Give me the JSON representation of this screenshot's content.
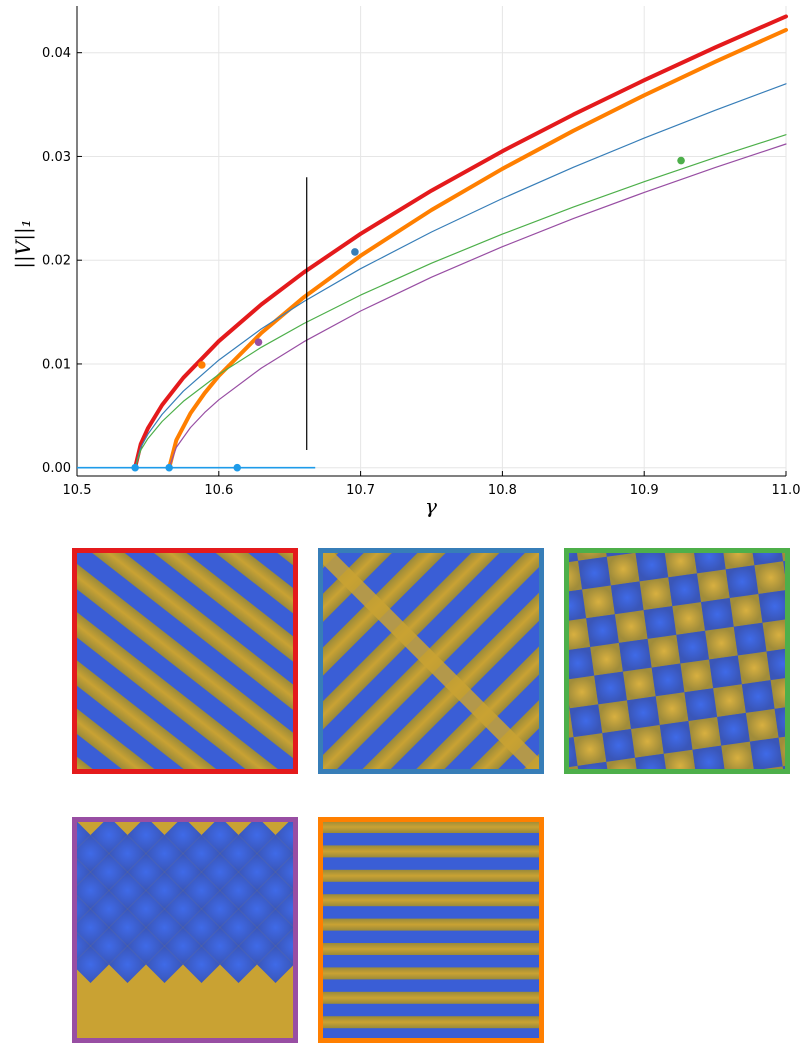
{
  "chart_data": {
    "type": "line",
    "xlabel": "γ",
    "ylabel": "||V||₁",
    "xlim": [
      10.5,
      11.0
    ],
    "ylim": [
      -0.0008,
      0.0445
    ],
    "xticks": [
      "10.5",
      "10.6",
      "10.7",
      "10.8",
      "10.9",
      "11.0"
    ],
    "xtick_values": [
      10.5,
      10.6,
      10.7,
      10.8,
      10.9,
      11.0
    ],
    "yticks": [
      "0.00",
      "0.01",
      "0.02",
      "0.03",
      "0.04"
    ],
    "ytick_values": [
      0.0,
      0.01,
      0.02,
      0.03,
      0.04
    ],
    "grid": true,
    "series": [
      {
        "color": "#e41a1c",
        "width": 4,
        "onset": 10.541,
        "at_end": 0.0435,
        "x": [
          10.541,
          10.545,
          10.55,
          10.56,
          10.575,
          10.6,
          10.63,
          10.66,
          10.7,
          10.75,
          10.8,
          10.85,
          10.9,
          10.95,
          11.0
        ]
      },
      {
        "color": "#ff7f00",
        "width": 4,
        "onset": 10.565,
        "at_end": 0.0422,
        "x": [
          10.565,
          10.57,
          10.58,
          10.59,
          10.6,
          10.63,
          10.66,
          10.7,
          10.75,
          10.8,
          10.85,
          10.9,
          10.95,
          11.0
        ]
      },
      {
        "color": "#377eb8",
        "width": 1.2,
        "onset": 10.541,
        "at_end": 0.037,
        "x": [
          10.541,
          10.545,
          10.55,
          10.56,
          10.575,
          10.6,
          10.63,
          10.66,
          10.7,
          10.75,
          10.8,
          10.85,
          10.9,
          10.95,
          11.0
        ]
      },
      {
        "color": "#4daf4a",
        "width": 1.2,
        "onset": 10.541,
        "at_end": 0.0321,
        "x": [
          10.541,
          10.545,
          10.55,
          10.56,
          10.575,
          10.6,
          10.63,
          10.66,
          10.7,
          10.75,
          10.8,
          10.85,
          10.9,
          10.95,
          11.0
        ]
      },
      {
        "color": "#984ea3",
        "width": 1.2,
        "onset": 10.565,
        "at_end": 0.0312,
        "x": [
          10.565,
          10.57,
          10.58,
          10.59,
          10.6,
          10.63,
          10.66,
          10.7,
          10.75,
          10.8,
          10.85,
          10.9,
          10.95,
          11.0
        ]
      }
    ],
    "trivial_branch": {
      "color": "#1e9be9",
      "x": [
        10.5,
        10.668
      ],
      "y": 0.0
    },
    "markers": [
      {
        "x": 10.696,
        "y": 0.0208,
        "color": "#377eb8"
      },
      {
        "x": 10.926,
        "y": 0.0296,
        "color": "#4daf4a"
      },
      {
        "x": 10.628,
        "y": 0.0121,
        "color": "#984ea3"
      },
      {
        "x": 10.588,
        "y": 0.0099,
        "color": "#ff7f00"
      },
      {
        "x": 10.541,
        "y": 0.0,
        "color": "#1e9be9"
      },
      {
        "x": 10.565,
        "y": 0.0,
        "color": "#1e9be9"
      },
      {
        "x": 10.613,
        "y": 0.0,
        "color": "#1e9be9"
      }
    ],
    "vline": {
      "x": 10.662,
      "y": [
        0.0017,
        0.028
      ],
      "color": "#000000"
    }
  },
  "panels": [
    {
      "pattern": "diagonal-stripes",
      "border": "#e41a1c"
    },
    {
      "pattern": "crossed-stripes",
      "border": "#377eb8"
    },
    {
      "pattern": "tilted-squares",
      "border": "#4daf4a"
    },
    {
      "pattern": "diamonds",
      "border": "#984ea3"
    },
    {
      "pattern": "horizontal-stripes",
      "border": "#ff7f00"
    }
  ],
  "colors": {
    "blue": "#3a5ed6",
    "gold": "#c9a233"
  }
}
